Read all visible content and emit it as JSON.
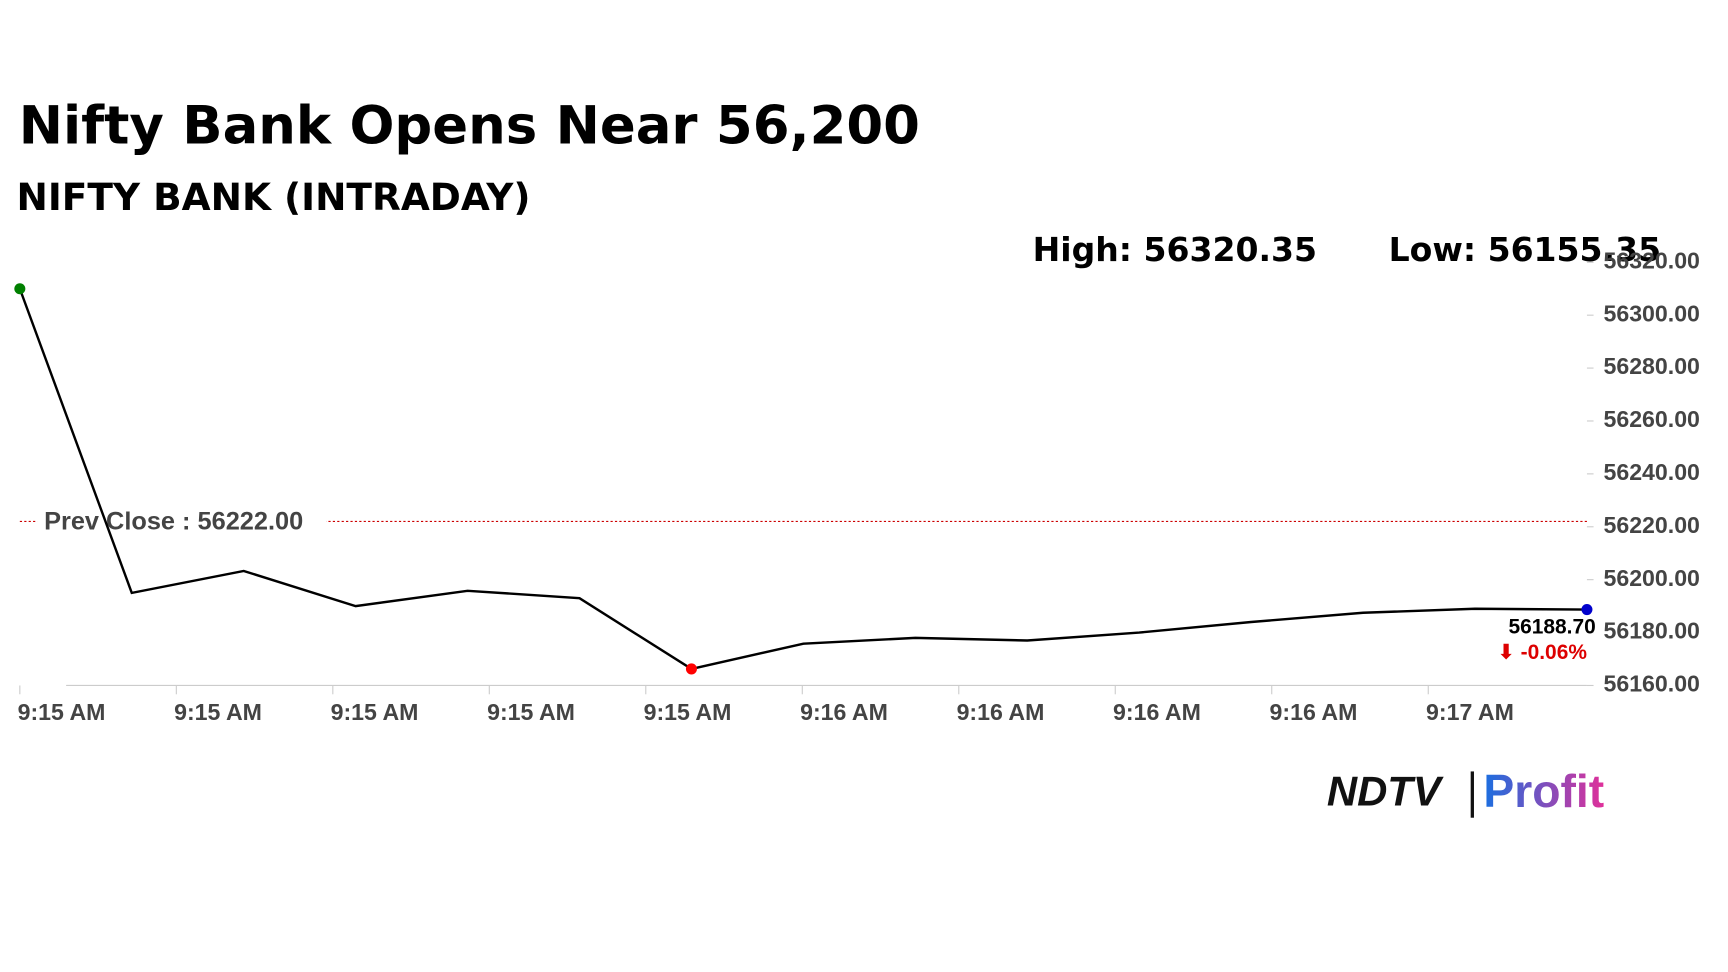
{
  "chart_data": {
    "type": "line",
    "title": "Nifty Bank Opens Near 56,200",
    "subtitle": "NIFTY BANK (INTRADAY)",
    "high_label": "High: 56320.35",
    "low_label": "Low: 56155.35",
    "xlabels": [
      "9:15 AM",
      "9:15 AM",
      "9:15 AM",
      "9:15 AM",
      "9:15 AM",
      "9:16 AM",
      "9:16 AM",
      "9:16 AM",
      "9:16 AM",
      "9:17 AM"
    ],
    "values": [
      56310,
      56195,
      56203.3,
      56190,
      56195.8,
      56193,
      56166.25,
      56175.8,
      56178,
      56177,
      56180,
      56184,
      56187.5,
      56189,
      56188.7
    ],
    "color": "#000000",
    "marker_colors": {
      "start": "#008000",
      "low": "#ff0000",
      "end": "#0000cc"
    },
    "prev_close": {
      "value": 56222,
      "label": "Prev Close : 56222.00",
      "color": "#cc0000"
    },
    "last_label": "56188.70",
    "change_label": "⬇ -0.06%",
    "change_color": "#dd0000",
    "ylim": [
      56160,
      56320
    ],
    "yticks": [
      {
        "value": 56160,
        "label": "56160.00"
      },
      {
        "value": 56180,
        "label": "56180.00"
      },
      {
        "value": 56200,
        "label": "56200.00"
      },
      {
        "value": 56220,
        "label": "56220.00"
      },
      {
        "value": 56240,
        "label": "56240.00"
      },
      {
        "value": 56260,
        "label": "56260.00"
      },
      {
        "value": 56280,
        "label": "56280.00"
      },
      {
        "value": 56300,
        "label": "56300.00"
      },
      {
        "value": 56320,
        "label": "56320.00"
      }
    ],
    "grid": false
  },
  "brand": {
    "ndtv": "NDTV",
    "profit": "Profit"
  }
}
